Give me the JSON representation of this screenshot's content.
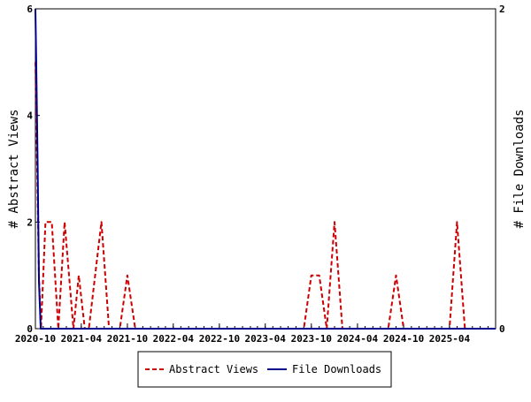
{
  "chart_data": {
    "type": "line",
    "xlabel": "",
    "ylabel": "# Abstract Views",
    "y2label": "# File Downloads",
    "ylim": [
      0,
      6
    ],
    "y2lim": [
      0,
      2
    ],
    "yticks": [
      "0",
      "2",
      "4",
      "6"
    ],
    "y2ticks": [
      "0",
      "2"
    ],
    "xlim": [
      "2020-10",
      "2025-10"
    ],
    "xticks": [
      "2020-10",
      "2021-04",
      "2021-10",
      "2022-04",
      "2022-10",
      "2023-04",
      "2023-10",
      "2024-04",
      "2024-10",
      "2025-04"
    ],
    "grid": false,
    "legend_position": "bottom",
    "series": [
      {
        "name": "Abstract Views",
        "axis": "left",
        "color": "#cc0000",
        "style": "dashed",
        "points": [
          [
            "2020-10-01",
            5
          ],
          [
            "2020-10-08",
            3
          ],
          [
            "2020-10-15",
            1
          ],
          [
            "2020-10-23",
            0
          ],
          [
            "2020-11-10",
            2
          ],
          [
            "2020-12-05",
            2
          ],
          [
            "2020-12-31",
            0
          ],
          [
            "2021-01-25",
            2
          ],
          [
            "2021-03-01",
            0
          ],
          [
            "2021-03-22",
            1
          ],
          [
            "2021-04-15",
            0
          ],
          [
            "2021-05-01",
            0
          ],
          [
            "2021-06-20",
            2
          ],
          [
            "2021-07-20",
            0
          ],
          [
            "2021-09-01",
            0
          ],
          [
            "2021-10-01",
            1
          ],
          [
            "2021-11-01",
            0
          ],
          [
            "2023-09-01",
            0
          ],
          [
            "2023-10-01",
            1
          ],
          [
            "2023-11-01",
            1
          ],
          [
            "2023-12-01",
            0
          ],
          [
            "2024-01-01",
            2
          ],
          [
            "2024-02-01",
            0
          ],
          [
            "2024-08-01",
            0
          ],
          [
            "2024-09-01",
            1
          ],
          [
            "2024-10-01",
            0
          ],
          [
            "2025-04-01",
            0
          ],
          [
            "2025-05-01",
            2
          ],
          [
            "2025-06-01",
            0
          ]
        ]
      },
      {
        "name": "File Downloads",
        "axis": "right",
        "color": "#00008b",
        "style": "solid",
        "points": [
          [
            "2020-10-01",
            2
          ],
          [
            "2020-10-05",
            1.6
          ],
          [
            "2020-10-10",
            1
          ],
          [
            "2020-10-15",
            0.3
          ],
          [
            "2020-10-22",
            0
          ],
          [
            "2025-10-01",
            0
          ]
        ]
      }
    ]
  }
}
